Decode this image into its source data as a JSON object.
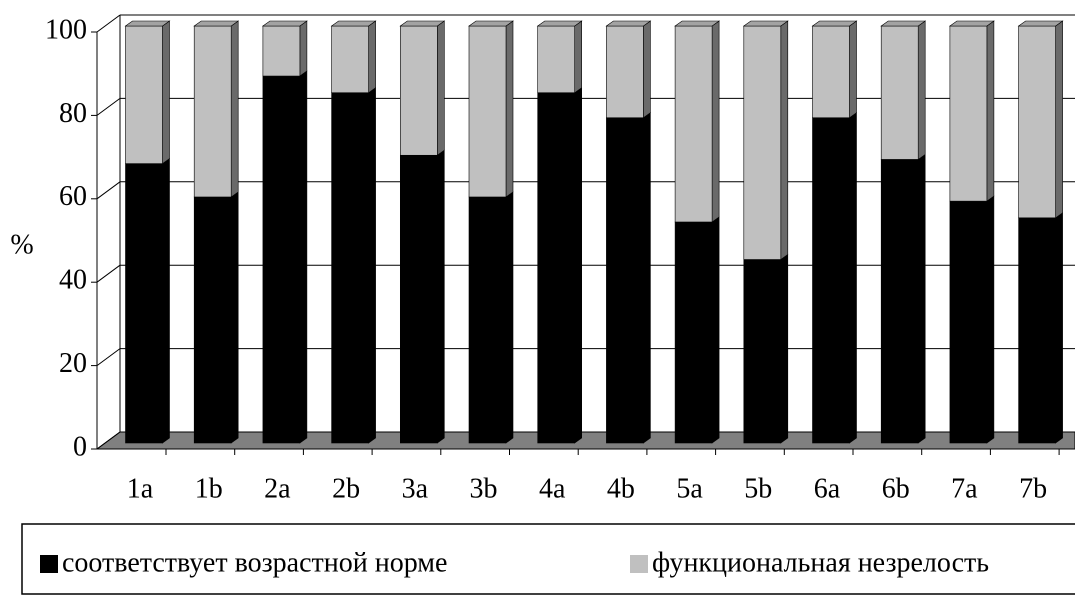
{
  "chart_data": {
    "type": "bar3d_stacked",
    "ylabel": "%",
    "categories": [
      "1a",
      "1b",
      "2a",
      "2b",
      "3a",
      "3b",
      "4a",
      "4b",
      "5a",
      "5b",
      "6a",
      "6b",
      "7a",
      "7b"
    ],
    "series": [
      {
        "name": "соответствует возрастной норме",
        "color": "#000000",
        "values": [
          67,
          59,
          88,
          84,
          69,
          59,
          84,
          78,
          53,
          44,
          78,
          68,
          58,
          54
        ]
      },
      {
        "name": "функциональная незрелость",
        "color": "#c0c0c0",
        "values": [
          33,
          41,
          12,
          16,
          31,
          41,
          16,
          22,
          47,
          56,
          22,
          32,
          42,
          46
        ]
      }
    ],
    "ylim": [
      0,
      100
    ],
    "yticks": [
      0,
      20,
      40,
      60,
      80,
      100
    ],
    "grid": true
  }
}
